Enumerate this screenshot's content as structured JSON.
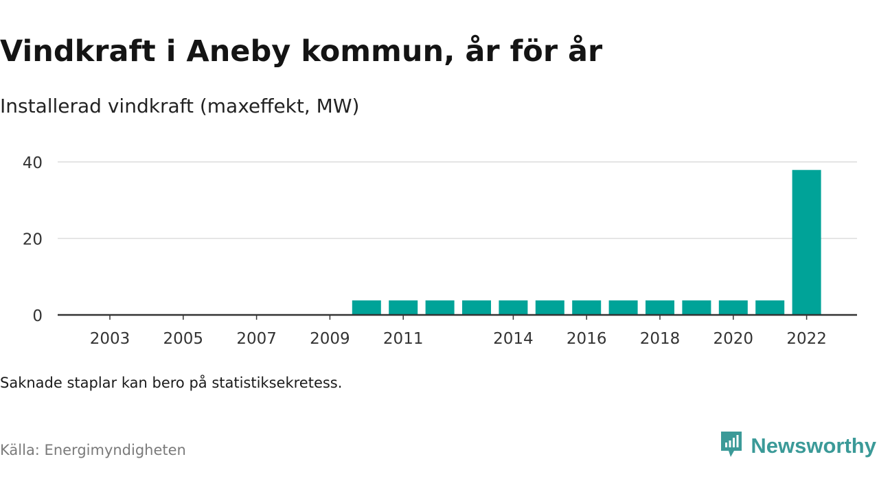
{
  "title": "Vindkraft i Aneby kommun, år för år",
  "subtitle": "Installerad vindkraft (maxeffekt, MW)",
  "note": "Saknade staplar kan bero på statistiksekretess.",
  "source": "Källa: Energimyndigheten",
  "brand": {
    "name": "Newsworthy",
    "icon": "newsworthy-logo-icon",
    "color": "#3b9a98"
  },
  "chart_data": {
    "type": "bar",
    "categories": [
      "2003",
      "2004",
      "2005",
      "2006",
      "2007",
      "2008",
      "2009",
      "2010",
      "2011",
      "2012",
      "2013",
      "2014",
      "2015",
      "2016",
      "2017",
      "2018",
      "2019",
      "2020",
      "2021",
      "2022"
    ],
    "values": [
      0,
      0,
      0,
      0,
      0,
      0,
      0,
      3.8,
      3.8,
      3.8,
      3.8,
      3.8,
      3.8,
      3.8,
      3.8,
      3.8,
      3.8,
      3.8,
      3.8,
      37.9
    ],
    "x_tick_labels": [
      "2003",
      "2005",
      "2007",
      "2009",
      "2011",
      "2014",
      "2016",
      "2018",
      "2020",
      "2022"
    ],
    "y_ticks": [
      0,
      20,
      40
    ],
    "ylim": [
      0,
      40
    ],
    "xlabel": "",
    "ylabel": "",
    "grid": true,
    "bar_color": "#00a398"
  }
}
